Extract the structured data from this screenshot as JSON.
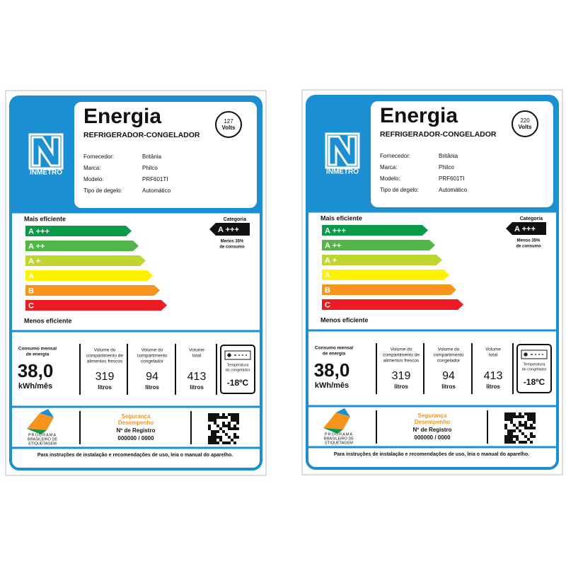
{
  "labels": [
    {
      "header": {
        "title": "Energia",
        "product": "REFRIGERADOR-CONGELADOR",
        "voltage": "127",
        "voltage_unit": "Volts",
        "logo_text": "INMETRO"
      },
      "fields": [
        {
          "label": "Fornecedor:",
          "value": "Britânia"
        },
        {
          "label": "Marca:",
          "value": "Philco"
        },
        {
          "label": "Modelo:",
          "value": "PRF601TI"
        },
        {
          "label": "Tipo de degelo:",
          "value": "Automático"
        }
      ],
      "scale": {
        "top_label": "Mais eficiente",
        "classes": [
          "A +++",
          "A ++",
          "A +",
          "A",
          "B",
          "C"
        ],
        "bottom_label": "Menos eficiente"
      },
      "category": {
        "label": "Categoria",
        "class": "A +++",
        "note": [
          "Menos 35%",
          "de consumo"
        ]
      },
      "metrics": {
        "energy": {
          "label": [
            "Consumo mensal",
            "de energia"
          ],
          "value": "38,0",
          "unit": "kWh/mês"
        },
        "volumes": [
          {
            "label": [
              "Volume do",
              "compartimento de",
              "alimentos frescos"
            ],
            "value": "319",
            "unit": "litros"
          },
          {
            "label": [
              "Volume do",
              "compartimento",
              "congelador"
            ],
            "value": "94",
            "unit": "litros"
          },
          {
            "label": [
              "Volume",
              "total"
            ],
            "value": "413",
            "unit": "litros"
          }
        ],
        "freezer": {
          "label": [
            "Temperatura",
            "do congelador"
          ],
          "value": "-18ºC"
        }
      },
      "footer": {
        "program": [
          "PROGRAMA",
          "BRASILEIRO DE",
          "ETIQUETAGEM"
        ],
        "seal": [
          "Segurança",
          "Desempenho"
        ],
        "registry_label": "Nº de Registro",
        "registry": "000000 / 0000",
        "note": "Para instruções de instalação e recomendações de uso, leia o manual do aparelho."
      }
    },
    {
      "header": {
        "title": "Energia",
        "product": "REFRIGERADOR-CONGELADOR",
        "voltage": "220",
        "voltage_unit": "Volts",
        "logo_text": "INMETRO"
      },
      "fields": [
        {
          "label": "Fornecedor:",
          "value": "Britânia"
        },
        {
          "label": "Marca:",
          "value": "Philco"
        },
        {
          "label": "Modelo:",
          "value": "PRF601TI"
        },
        {
          "label": "Tipo de degelo:",
          "value": "Automático"
        }
      ],
      "scale": {
        "top_label": "Mais eficiente",
        "classes": [
          "A +++",
          "A ++",
          "A +",
          "A",
          "B",
          "C"
        ],
        "bottom_label": "Menos eficiente"
      },
      "category": {
        "label": "Categoria",
        "class": "A +++",
        "note": [
          "Menos 35%",
          "de consumo"
        ]
      },
      "metrics": {
        "energy": {
          "label": [
            "Consumo mensal",
            "de energia"
          ],
          "value": "38,0",
          "unit": "kWh/mês"
        },
        "volumes": [
          {
            "label": [
              "Volume do",
              "compartimento de",
              "alimentos frescos"
            ],
            "value": "319",
            "unit": "litros"
          },
          {
            "label": [
              "Volume do",
              "compartimento",
              "congelador"
            ],
            "value": "94",
            "unit": "litros"
          },
          {
            "label": [
              "Volume",
              "total"
            ],
            "value": "413",
            "unit": "litros"
          }
        ],
        "freezer": {
          "label": [
            "Temperatura",
            "do congelador"
          ],
          "value": "-18ºC"
        }
      },
      "footer": {
        "program": [
          "PROGRAMA",
          "BRASILEIRO DE",
          "ETIQUETAGEM"
        ],
        "seal": [
          "Segurança",
          "Desempenho"
        ],
        "registry_label": "Nº de Registro",
        "registry": "000000 / 0000",
        "note": "Para instruções de instalação e recomendações de uso, leia o manual do aparelho."
      }
    }
  ]
}
